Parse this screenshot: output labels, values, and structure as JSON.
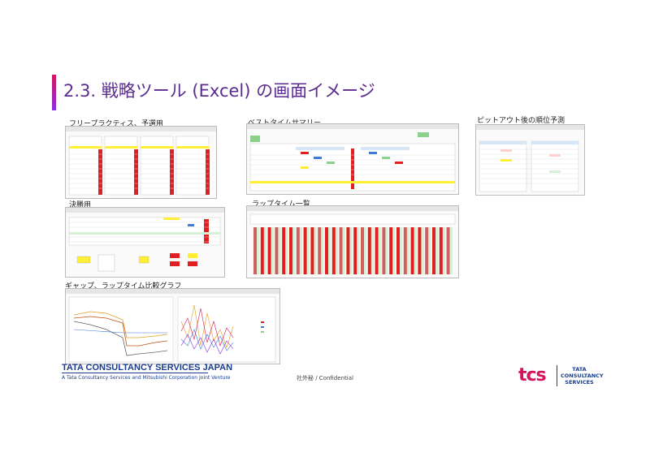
{
  "slide": {
    "title": "2.3. 戦略ツール (Excel) の画面イメージ"
  },
  "sections": {
    "practice": {
      "label": "フリープラクティス、予選用"
    },
    "best_time": {
      "label": "ベストタイムサマリー"
    },
    "pit_out": {
      "label": "ピットアウト後の順位予測"
    },
    "final": {
      "label": "決勝用"
    },
    "lap_list": {
      "label": "ラップタイム一覧"
    },
    "gap_graph": {
      "label": "ギャップ、ラップタイム比較グラフ"
    }
  },
  "footer": {
    "company": "TATA CONSULTANCY SERVICES JAPAN",
    "subtitle": "A Tata Consultancy Services and Mitsubishi Corporation Joint Venture",
    "confidential": "社外秘 / Confidential",
    "tcs_logo": "tcs",
    "tcs_name_1": "TATA",
    "tcs_name_2": "CONSULTANCY",
    "tcs_name_3": "SERVICES"
  },
  "colors": {
    "title": "#5b2c8f",
    "accent_start": "#d4145a",
    "accent_end": "#8e2de2",
    "brand_blue": "#1b3d8f",
    "cell_red": "#e02020",
    "cell_yellow": "#ffee33",
    "cell_green": "#8bd08b"
  }
}
